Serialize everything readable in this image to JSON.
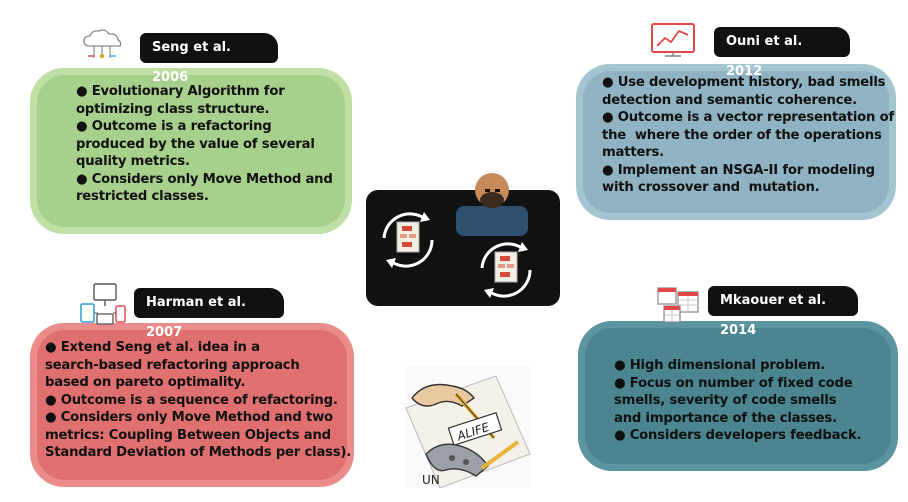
{
  "cards": {
    "seng": {
      "title": "Seng et al. 2006",
      "lines": [
        "● Evolutionary Algorithm for",
        "optimizing class structure.",
        "● Outcome is a refactoring",
        "produced by the value of several",
        "quality metrics.",
        "● Considers only Move Method and",
        "restricted classes."
      ]
    },
    "ouni": {
      "title": "Ouni et al. 2012",
      "lines": [
        "● Use development history, bad smells",
        "detection and semantic coherence.",
        "● Outcome is a vector representation of",
        "the  where the order of the operations",
        "matters.",
        "● Implement an NSGA-II for modeling",
        "with crossover and  mutation."
      ]
    },
    "harman": {
      "title": "Harman et al. 2007",
      "lines": [
        "● Extend Seng et al. idea in a",
        "search-based refactoring approach",
        "based on pareto optimality.",
        "● Outcome is a sequence of refactoring.",
        "● Considers only Move Method and two",
        "metrics: Coupling Between Objects and",
        "Standard Deviation of Methods per class)."
      ]
    },
    "mkaouer": {
      "title": "Mkaouer et al. 2014",
      "lines": [
        "● High dimensional problem.",
        "● Focus on number of fixed code",
        "smells, severity of code smells",
        "and importance of the classes.",
        "● Considers developers feedback."
      ]
    }
  },
  "drawing": {
    "sign_text": "ALIFE",
    "corner_text": "UN"
  },
  "colors": {
    "green": "#a8d08d",
    "blue": "#8fb3c2",
    "red": "#e0706f",
    "teal": "#4a8590"
  }
}
